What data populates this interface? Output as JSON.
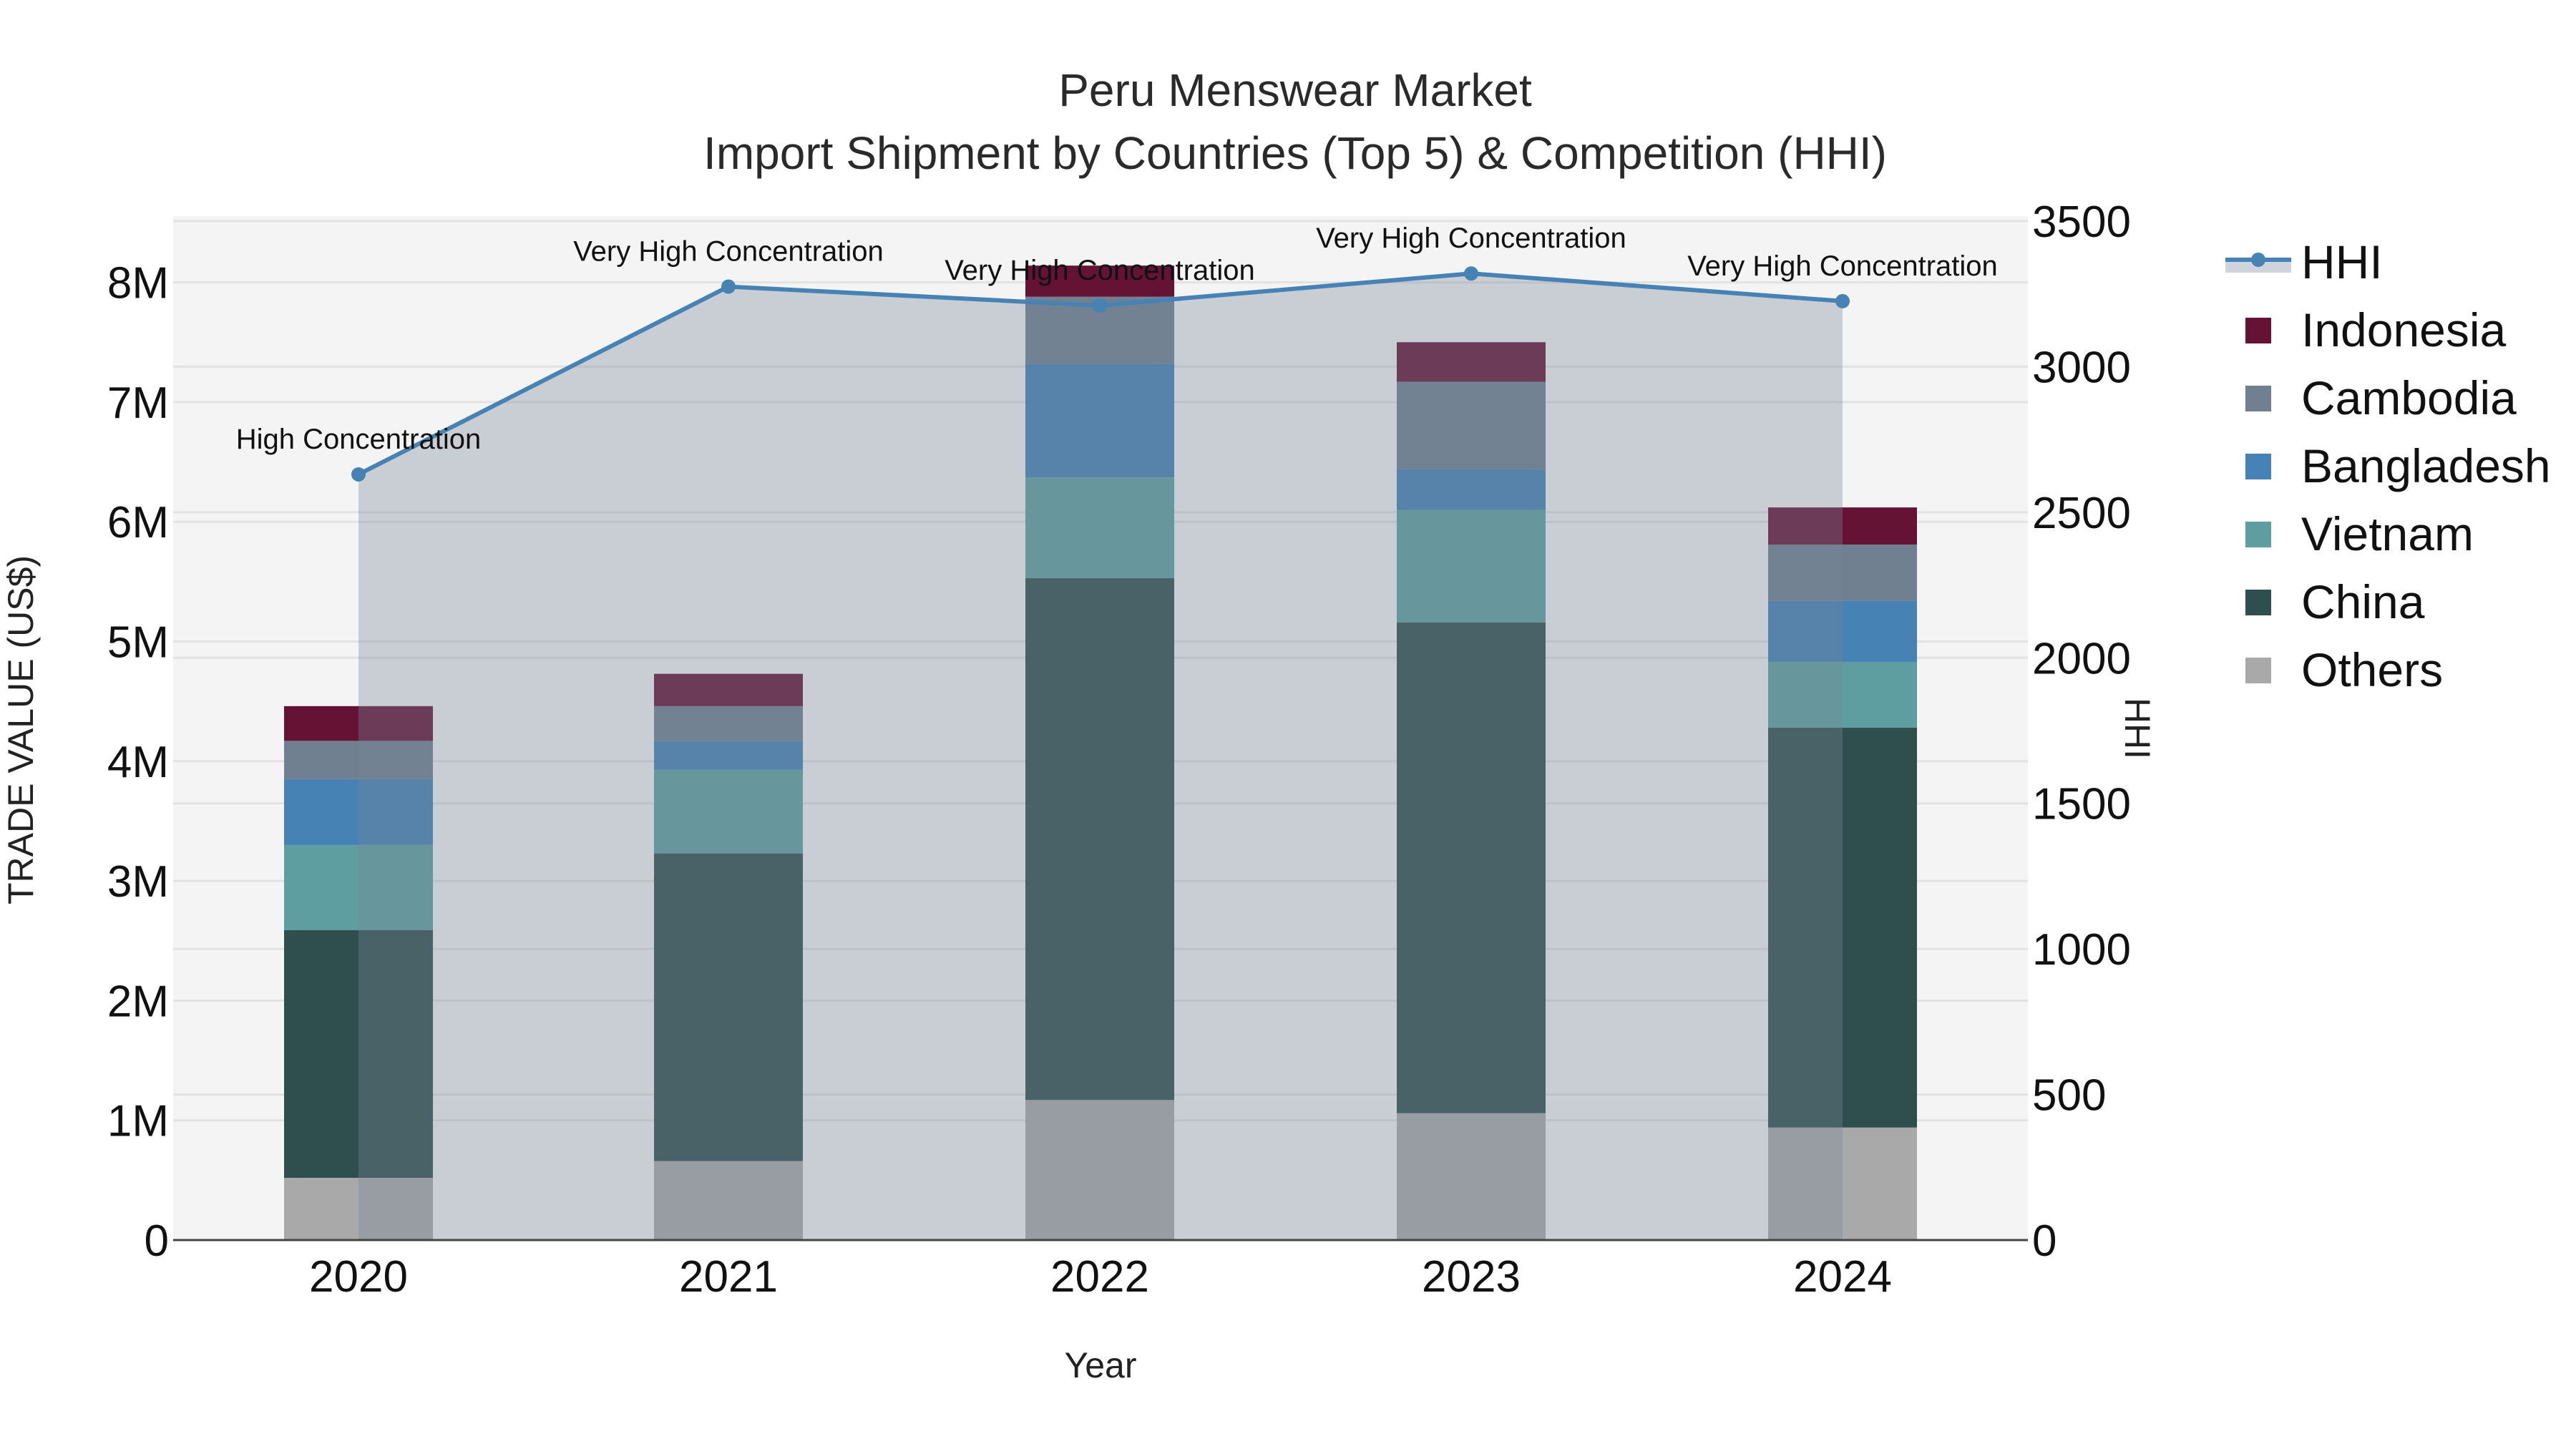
{
  "chart_data": {
    "type": "bar",
    "barmode": "stack",
    "title": "Peru Menswear Market",
    "subtitle": "Import Shipment by Countries (Top 5) & Competition (HHI)",
    "xlabel": "Year",
    "ylabel": "TRADE VALUE (US$)",
    "y2label": "HHI",
    "categories": [
      "2020",
      "2021",
      "2022",
      "2023",
      "2024"
    ],
    "ylim": [
      0,
      8560000
    ],
    "y2lim": [
      0,
      3500
    ],
    "yticks": [
      {
        "v": 0,
        "label": "0"
      },
      {
        "v": 1000000,
        "label": "1M"
      },
      {
        "v": 2000000,
        "label": "2M"
      },
      {
        "v": 3000000,
        "label": "3M"
      },
      {
        "v": 4000000,
        "label": "4M"
      },
      {
        "v": 5000000,
        "label": "5M"
      },
      {
        "v": 6000000,
        "label": "6M"
      },
      {
        "v": 7000000,
        "label": "7M"
      },
      {
        "v": 8000000,
        "label": "8M"
      }
    ],
    "y2ticks": [
      0,
      500,
      1000,
      1500,
      2000,
      2500,
      3000,
      3500
    ],
    "series": [
      {
        "name": "Others",
        "color": "#A9A9A9",
        "values": [
          520000,
          660000,
          1170000,
          1060000,
          940000
        ]
      },
      {
        "name": "China",
        "color": "#2F4F4F",
        "values": [
          2070000,
          2570000,
          4360000,
          4100000,
          3340000
        ]
      },
      {
        "name": "Vietnam",
        "color": "#5F9EA0",
        "values": [
          710000,
          700000,
          840000,
          940000,
          550000
        ]
      },
      {
        "name": "Bangladesh",
        "color": "#4682B4",
        "values": [
          550000,
          240000,
          950000,
          340000,
          510000
        ]
      },
      {
        "name": "Cambodia",
        "color": "#708090",
        "values": [
          320000,
          290000,
          560000,
          730000,
          470000
        ]
      },
      {
        "name": "Indonesia",
        "color": "#641335",
        "values": [
          290000,
          270000,
          260000,
          330000,
          310000
        ]
      }
    ],
    "hhi": {
      "name": "HHI",
      "color": "#4682B4",
      "fill": "rgba(119,136,153,0.35)",
      "values": [
        2630,
        3275,
        3210,
        3320,
        3225
      ],
      "annotations": [
        "High Concentration",
        "Very High Concentration",
        "Very High Concentration",
        "Very High Concentration",
        "Very High Concentration"
      ]
    },
    "legend": [
      "HHI",
      "Indonesia",
      "Cambodia",
      "Bangladesh",
      "Vietnam",
      "China",
      "Others"
    ],
    "legend_position": "right",
    "grid": true
  }
}
